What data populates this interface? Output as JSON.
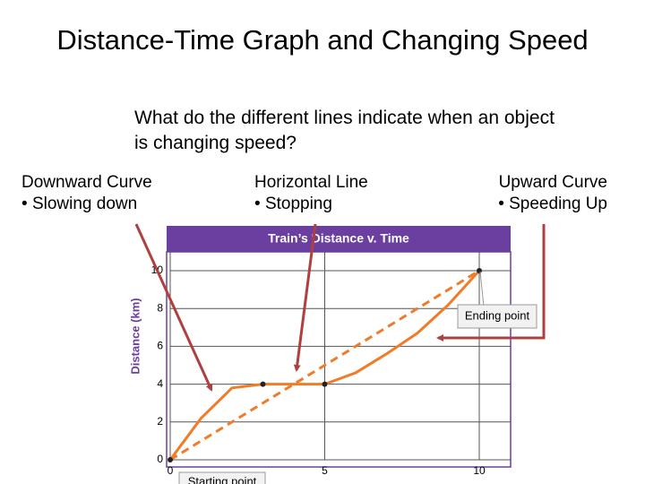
{
  "slide": {
    "title": "Distance-Time Graph and Changing Speed",
    "question": "What do the different lines indicate when an object is changing speed?",
    "columns": [
      {
        "heading": "Downward Curve",
        "bullet": "Slowing down"
      },
      {
        "heading": "Horizontal Line",
        "bullet": "Stopping"
      },
      {
        "heading": "Upward Curve",
        "bullet": "Speeding Up"
      }
    ]
  },
  "chart_data": {
    "type": "line",
    "title": "Train’s Distance v. Time",
    "y_label": "Distance (km)",
    "xlim": [
      0,
      11
    ],
    "ylim": [
      0,
      11
    ],
    "xticks": [
      0,
      5,
      10
    ],
    "yticks": [
      0,
      2,
      4,
      6,
      8,
      10
    ],
    "grid": true,
    "series": [
      {
        "color": "#f07c2a",
        "style": "solid",
        "x": [
          0,
          1,
          2,
          3,
          4,
          5,
          6,
          7,
          8,
          9,
          10
        ],
        "values": [
          0,
          2.2,
          3.8,
          4,
          4,
          4,
          4.6,
          5.6,
          6.7,
          8.2,
          10
        ]
      },
      {
        "color": "#f07c2a",
        "style": "dashed",
        "x": [
          0,
          10
        ],
        "values": [
          0,
          10
        ]
      }
    ],
    "points": {
      "x": [
        0,
        3,
        5,
        10
      ],
      "values": [
        0,
        4,
        4,
        10
      ]
    },
    "annotations": [
      "Ending point",
      "Starting point"
    ]
  }
}
